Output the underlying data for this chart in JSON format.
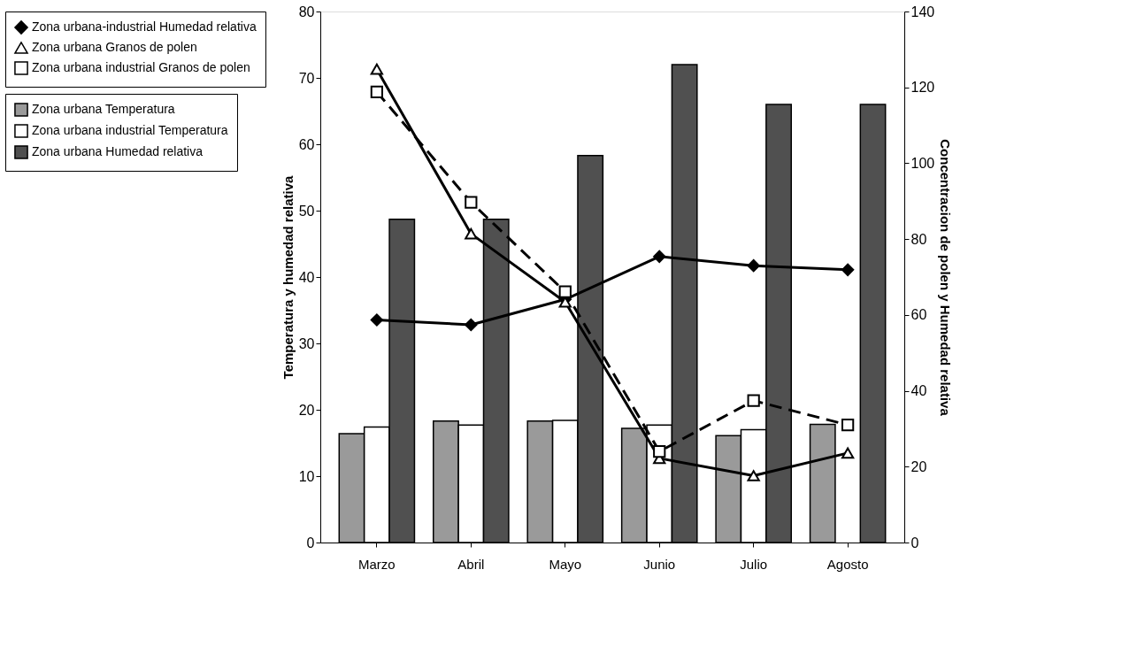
{
  "chart_data": {
    "type": "bar",
    "categories": [
      "Marzo",
      "Abril",
      "Mayo",
      "Junio",
      "Julio",
      "Agosto"
    ],
    "ylabel": "Temperatura y humedad relativa",
    "y2label": "Concentracion de polen y Humedad relativa",
    "ylim": [
      0,
      80
    ],
    "yticks": [
      0,
      10,
      20,
      30,
      40,
      50,
      60,
      70,
      80
    ],
    "y2lim": [
      0,
      140
    ],
    "y2ticks": [
      0,
      20,
      40,
      60,
      80,
      100,
      120,
      140
    ],
    "legend": "left",
    "grid": false,
    "series": [
      {
        "name": "Zona urbana Temperatura",
        "color": "#9a9a9a",
        "values": [
          16.4,
          18.3,
          18.3,
          17.2,
          16.1,
          17.8
        ]
      },
      {
        "name": "Zona urbana industrial Temperatura",
        "color": "#ffffff",
        "values": [
          17.4,
          17.7,
          18.4,
          17.7,
          17.0,
          null
        ]
      },
      {
        "name": "Zona urbana Humedad relativa",
        "color": "#505050",
        "values": [
          48.7,
          48.7,
          58.3,
          72.0,
          66.0,
          66.0
        ]
      },
      {
        "name": "Zona urbana-industrial Humedad relativa",
        "type": "line",
        "axis": "y2",
        "color": "#000000",
        "marker": "diamond",
        "line_style": "solid",
        "values": [
          58.7,
          57.4,
          64.1,
          75.4,
          73.0,
          71.9
        ]
      },
      {
        "name": "Zona urbana Granos de polen",
        "type": "line",
        "axis": "y2",
        "color": "#000000",
        "marker": "triangle",
        "line_style": "solid",
        "values": [
          124.8,
          81.4,
          63.4,
          22.2,
          17.6,
          23.6
        ]
      },
      {
        "name": "Zona urbana industrial Granos de polen",
        "type": "line",
        "axis": "y2",
        "color": "#000000",
        "marker": "square",
        "line_style": "dashed",
        "values": [
          118.8,
          89.7,
          66.1,
          24.0,
          37.4,
          31.0
        ]
      }
    ]
  }
}
